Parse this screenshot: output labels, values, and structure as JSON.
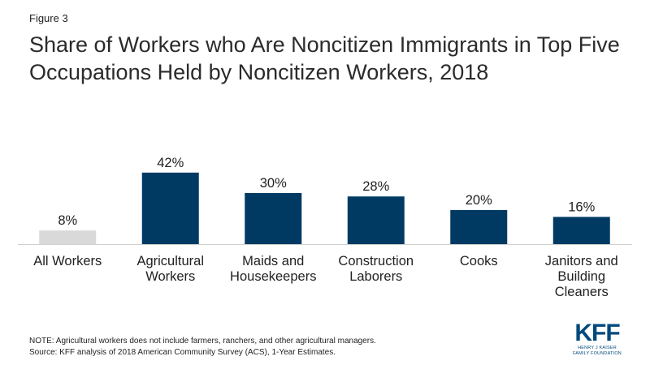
{
  "figure_label": "Figure 3",
  "chart_data": {
    "type": "bar",
    "title": "Share of Workers who Are Noncitizen Immigrants in Top Five Occupations Held by Noncitizen Workers, 2018",
    "categories": [
      "All Workers",
      "Agricultural Workers",
      "Maids and Housekeepers",
      "Construction Laborers",
      "Cooks",
      "Janitors and Building Cleaners"
    ],
    "category_lines": [
      [
        "All Workers"
      ],
      [
        "Agricultural",
        "Workers"
      ],
      [
        "Maids and",
        "Housekeepers"
      ],
      [
        "Construction",
        "Laborers"
      ],
      [
        "Cooks"
      ],
      [
        "Janitors and",
        "Building",
        "Cleaners"
      ]
    ],
    "values": [
      8,
      42,
      30,
      28,
      20,
      16
    ],
    "data_labels": [
      "8%",
      "42%",
      "30%",
      "28%",
      "20%",
      "16%"
    ],
    "bar_colors": [
      "#d9d9d9",
      "#003a63",
      "#003a63",
      "#003a63",
      "#003a63",
      "#003a63"
    ],
    "ylim": [
      0,
      100
    ],
    "grid": false,
    "legend": false
  },
  "notes": {
    "note": "NOTE: Agricultural workers does not include farmers, ranchers, and other agricultural managers.",
    "source": "Source: KFF analysis of 2018 American Community Survey (ACS), 1-Year Estimates."
  },
  "logo": {
    "mark": "KFF",
    "line1": "HENRY J KAISER",
    "line2": "FAMILY FOUNDATION"
  },
  "colors": {
    "accent": "#003a63",
    "baseline_bar": "#d9d9d9",
    "axis": "#d0d0d0"
  }
}
